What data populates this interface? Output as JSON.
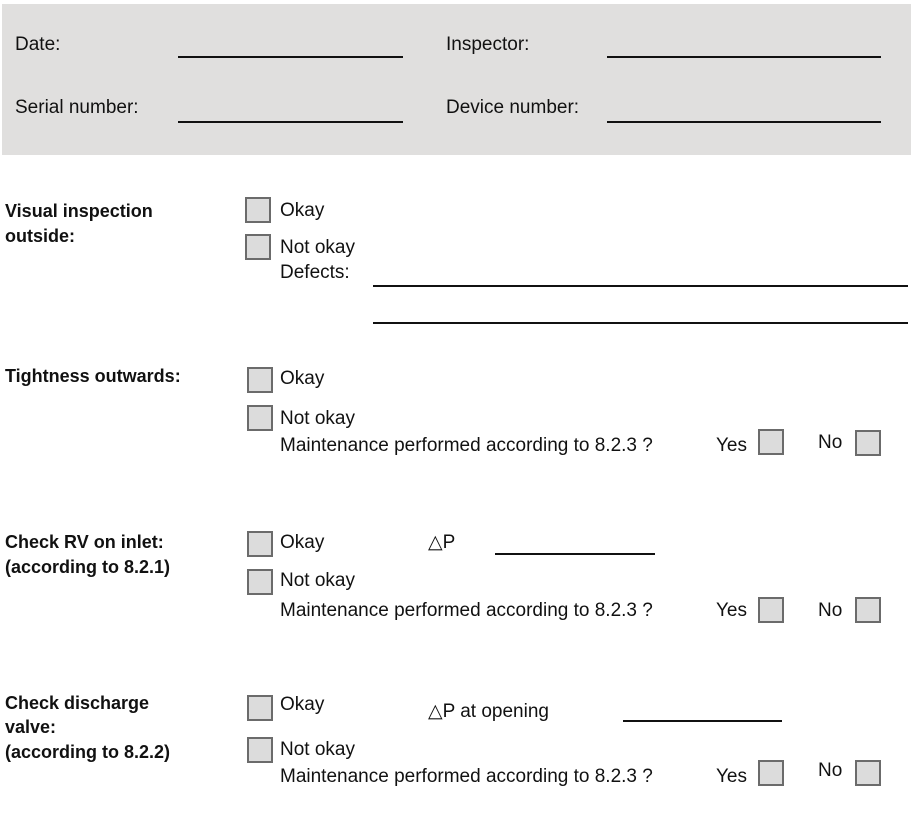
{
  "header": {
    "date_label": "Date:",
    "inspector_label": "Inspector:",
    "serial_label": "Serial number:",
    "device_label": "Device number:"
  },
  "sections": [
    {
      "label_lines": [
        "Visual inspection",
        "outside:"
      ],
      "okay": "Okay",
      "not_okay": "Not okay",
      "defects": "Defects:"
    },
    {
      "label_lines": [
        "Tightness outwards:"
      ],
      "okay": "Okay",
      "not_okay": "Not okay",
      "maintenance": "Maintenance performed according to 8.2.3 ?",
      "yes": "Yes",
      "no": "No"
    },
    {
      "label_lines": [
        "Check RV on inlet:",
        "(according to 8.2.1)"
      ],
      "okay": "Okay",
      "not_okay": "Not okay",
      "delta": "△P",
      "maintenance": "Maintenance performed according to 8.2.3 ?",
      "yes": "Yes",
      "no": "No"
    },
    {
      "label_lines": [
        "Check discharge",
        "valve:",
        "(according to 8.2.2)"
      ],
      "okay": "Okay",
      "not_okay": "Not okay",
      "delta": "△P at opening",
      "maintenance": "Maintenance performed according to 8.2.3 ?",
      "yes": "Yes",
      "no": "No"
    }
  ],
  "colors": {
    "header_band": "#e0dfde",
    "checkbox_fill": "#dcdcdc",
    "checkbox_border": "#6b6b6b"
  }
}
